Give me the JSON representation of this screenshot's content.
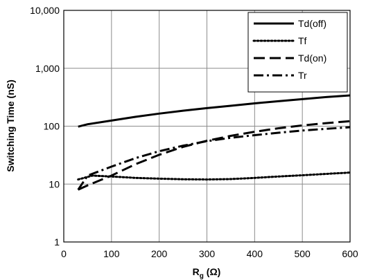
{
  "chart_data": {
    "type": "line",
    "title": "",
    "xlabel_main": "R",
    "xlabel_sub": "g",
    "xlabel_unit": " (Ω)",
    "ylabel": "Switching Time  (nS)",
    "xlim": [
      0,
      600
    ],
    "ylim": [
      1,
      10000
    ],
    "yscale": "log",
    "grid": true,
    "legend_position": "top-right",
    "x_ticks": [
      0,
      100,
      200,
      300,
      400,
      500,
      600
    ],
    "x_tick_labels": [
      "0",
      "100",
      "200",
      "300",
      "400",
      "500",
      "600"
    ],
    "y_ticks": [
      1,
      10,
      100,
      1000,
      10000
    ],
    "y_tick_labels": [
      "1",
      "10",
      "100",
      "1,000",
      "10,000"
    ],
    "series": [
      {
        "name": "Td(off)",
        "style": "solid",
        "x": [
          30,
          50,
          100,
          150,
          200,
          250,
          300,
          350,
          400,
          450,
          500,
          550,
          600
        ],
        "y": [
          98,
          108,
          125,
          145,
          165,
          185,
          205,
          225,
          248,
          270,
          293,
          318,
          340
        ]
      },
      {
        "name": "Tf",
        "style": "dotted",
        "x": [
          30,
          60,
          100,
          150,
          200,
          250,
          300,
          350,
          400,
          450,
          500,
          550,
          600
        ],
        "y": [
          12,
          14,
          13.5,
          12.8,
          12.4,
          12.1,
          12,
          12.2,
          12.8,
          13.5,
          14.2,
          15,
          15.8
        ]
      },
      {
        "name": "Td(on)",
        "style": "dashed",
        "x": [
          30,
          50,
          100,
          150,
          200,
          250,
          300,
          350,
          400,
          450,
          500,
          550,
          600
        ],
        "y": [
          8,
          9.5,
          14,
          22,
          32,
          44,
          56,
          68,
          80,
          92,
          103,
          113,
          122
        ]
      },
      {
        "name": "Tr",
        "style": "dashdot",
        "x": [
          30,
          50,
          100,
          150,
          200,
          250,
          300,
          350,
          400,
          450,
          500,
          550,
          600
        ],
        "y": [
          8,
          14,
          20,
          28,
          37,
          46,
          55,
          63,
          70,
          77,
          84,
          90,
          96
        ]
      }
    ]
  }
}
